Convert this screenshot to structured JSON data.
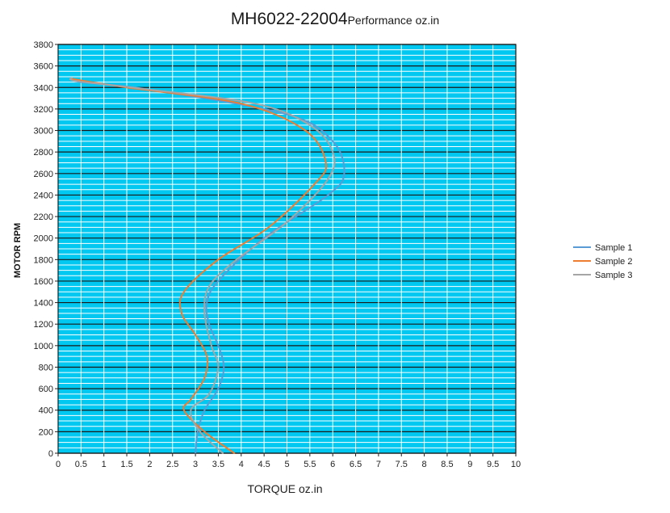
{
  "chart_data": {
    "type": "line",
    "title": "MH6022-22004",
    "subtitle": "Performance oz.in",
    "xlabel": "TORQUE  oz.in",
    "ylabel": "MOTOR RPM",
    "xlim": [
      0,
      10
    ],
    "ylim": [
      0,
      3800
    ],
    "x_ticks": [
      "0",
      "0.5",
      "1",
      "1.5",
      "2",
      "2.5",
      "3",
      "3.5",
      "4",
      "4.5",
      "5",
      "5.5",
      "6",
      "6.5",
      "7",
      "7.5",
      "8",
      "8.5",
      "9",
      "9.5",
      "10"
    ],
    "y_ticks": [
      "0",
      "200",
      "400",
      "600",
      "800",
      "1000",
      "1200",
      "1400",
      "1600",
      "1800",
      "2000",
      "2200",
      "2400",
      "2600",
      "2800",
      "3000",
      "3200",
      "3400",
      "3600",
      "3800"
    ],
    "grid": true,
    "plot_background": "#00c8f0",
    "legend_position": "right",
    "series": [
      {
        "name": "Sample 1",
        "color": "#5b9bd5",
        "points": [
          [
            3.0,
            0
          ],
          [
            3.05,
            200
          ],
          [
            3.2,
            400
          ],
          [
            3.5,
            600
          ],
          [
            3.62,
            800
          ],
          [
            3.5,
            1000
          ],
          [
            3.3,
            1200
          ],
          [
            3.25,
            1400
          ],
          [
            3.5,
            1600
          ],
          [
            4.5,
            2000
          ],
          [
            5.9,
            2400
          ],
          [
            6.25,
            2600
          ],
          [
            6.0,
            2900
          ],
          [
            5.0,
            3150
          ],
          [
            2.0,
            3380
          ],
          [
            0.5,
            3450
          ],
          [
            0.3,
            3480
          ]
        ]
      },
      {
        "name": "Sample 2",
        "color": "#ed7d31",
        "points": [
          [
            3.85,
            0
          ],
          [
            3.2,
            200
          ],
          [
            2.75,
            400
          ],
          [
            2.9,
            500
          ],
          [
            3.2,
            700
          ],
          [
            3.25,
            900
          ],
          [
            3.0,
            1100
          ],
          [
            2.7,
            1300
          ],
          [
            2.75,
            1500
          ],
          [
            3.5,
            1800
          ],
          [
            4.6,
            2100
          ],
          [
            5.6,
            2500
          ],
          [
            5.85,
            2700
          ],
          [
            5.4,
            3000
          ],
          [
            4.0,
            3250
          ],
          [
            1.5,
            3400
          ],
          [
            0.3,
            3480
          ]
        ]
      },
      {
        "name": "Sample 3",
        "color": "#a5a5a5",
        "points": [
          [
            3.6,
            0
          ],
          [
            3.1,
            200
          ],
          [
            2.9,
            400
          ],
          [
            3.3,
            550
          ],
          [
            3.5,
            800
          ],
          [
            3.35,
            1000
          ],
          [
            3.2,
            1300
          ],
          [
            3.3,
            1550
          ],
          [
            3.9,
            1800
          ],
          [
            5.0,
            2150
          ],
          [
            5.9,
            2550
          ],
          [
            6.0,
            2800
          ],
          [
            5.5,
            3050
          ],
          [
            4.3,
            3250
          ],
          [
            1.8,
            3390
          ],
          [
            0.4,
            3460
          ],
          [
            0.3,
            3490
          ]
        ]
      }
    ]
  }
}
